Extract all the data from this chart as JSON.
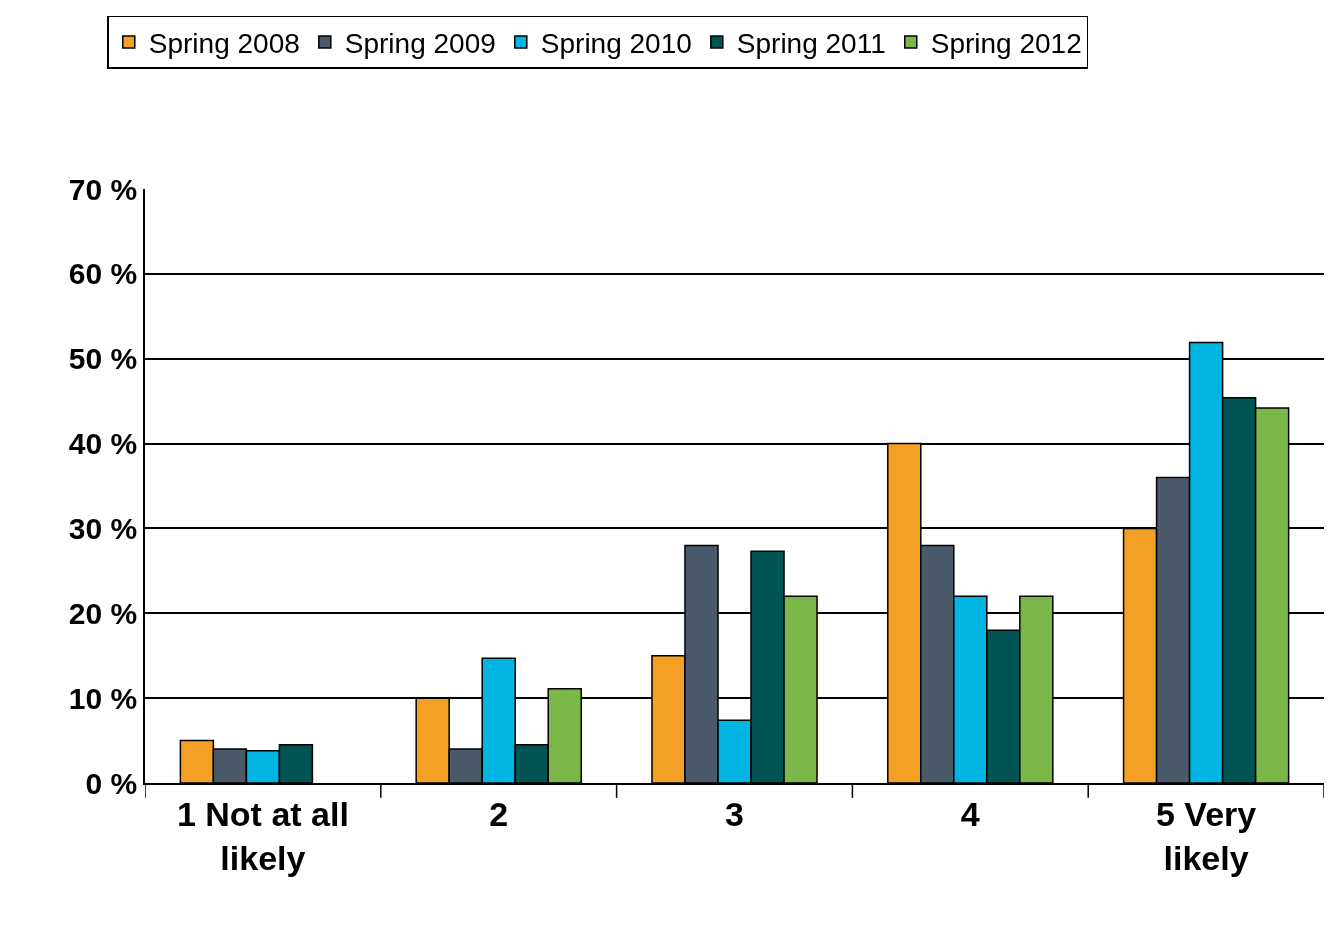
{
  "chart_data": {
    "type": "bar",
    "categories": [
      "1 Not at all likely",
      "2",
      "3",
      "4",
      "5 Very likely"
    ],
    "series": [
      {
        "name": "Spring 2008",
        "color": "#f4a025",
        "values": [
          5,
          10,
          15,
          40,
          30
        ]
      },
      {
        "name": "Spring 2009",
        "color": "#4a5a68",
        "values": [
          4,
          4,
          28,
          28,
          36
        ]
      },
      {
        "name": "Spring 2010",
        "color": "#00b5e2",
        "values": [
          3.8,
          14.7,
          7.4,
          22,
          51.9
        ]
      },
      {
        "name": "Spring 2011",
        "color": "#005454",
        "values": [
          4.5,
          4.5,
          27.3,
          18,
          45.4
        ]
      },
      {
        "name": "Spring 2012",
        "color": "#7ab648",
        "values": [
          null,
          11.1,
          22,
          22,
          44.2
        ]
      }
    ],
    "ylim": [
      0,
      70
    ],
    "yticks": [
      {
        "value": 0,
        "label": "0 %"
      },
      {
        "value": 10,
        "label": "10 %"
      },
      {
        "value": 20,
        "label": "20 %"
      },
      {
        "value": 30,
        "label": "30 %"
      },
      {
        "value": 40,
        "label": "40 %"
      },
      {
        "value": 50,
        "label": "50 %"
      },
      {
        "value": 60,
        "label": "60 %"
      },
      {
        "value": 70,
        "label": "70 %"
      }
    ],
    "grid": "y",
    "legend": "top"
  }
}
